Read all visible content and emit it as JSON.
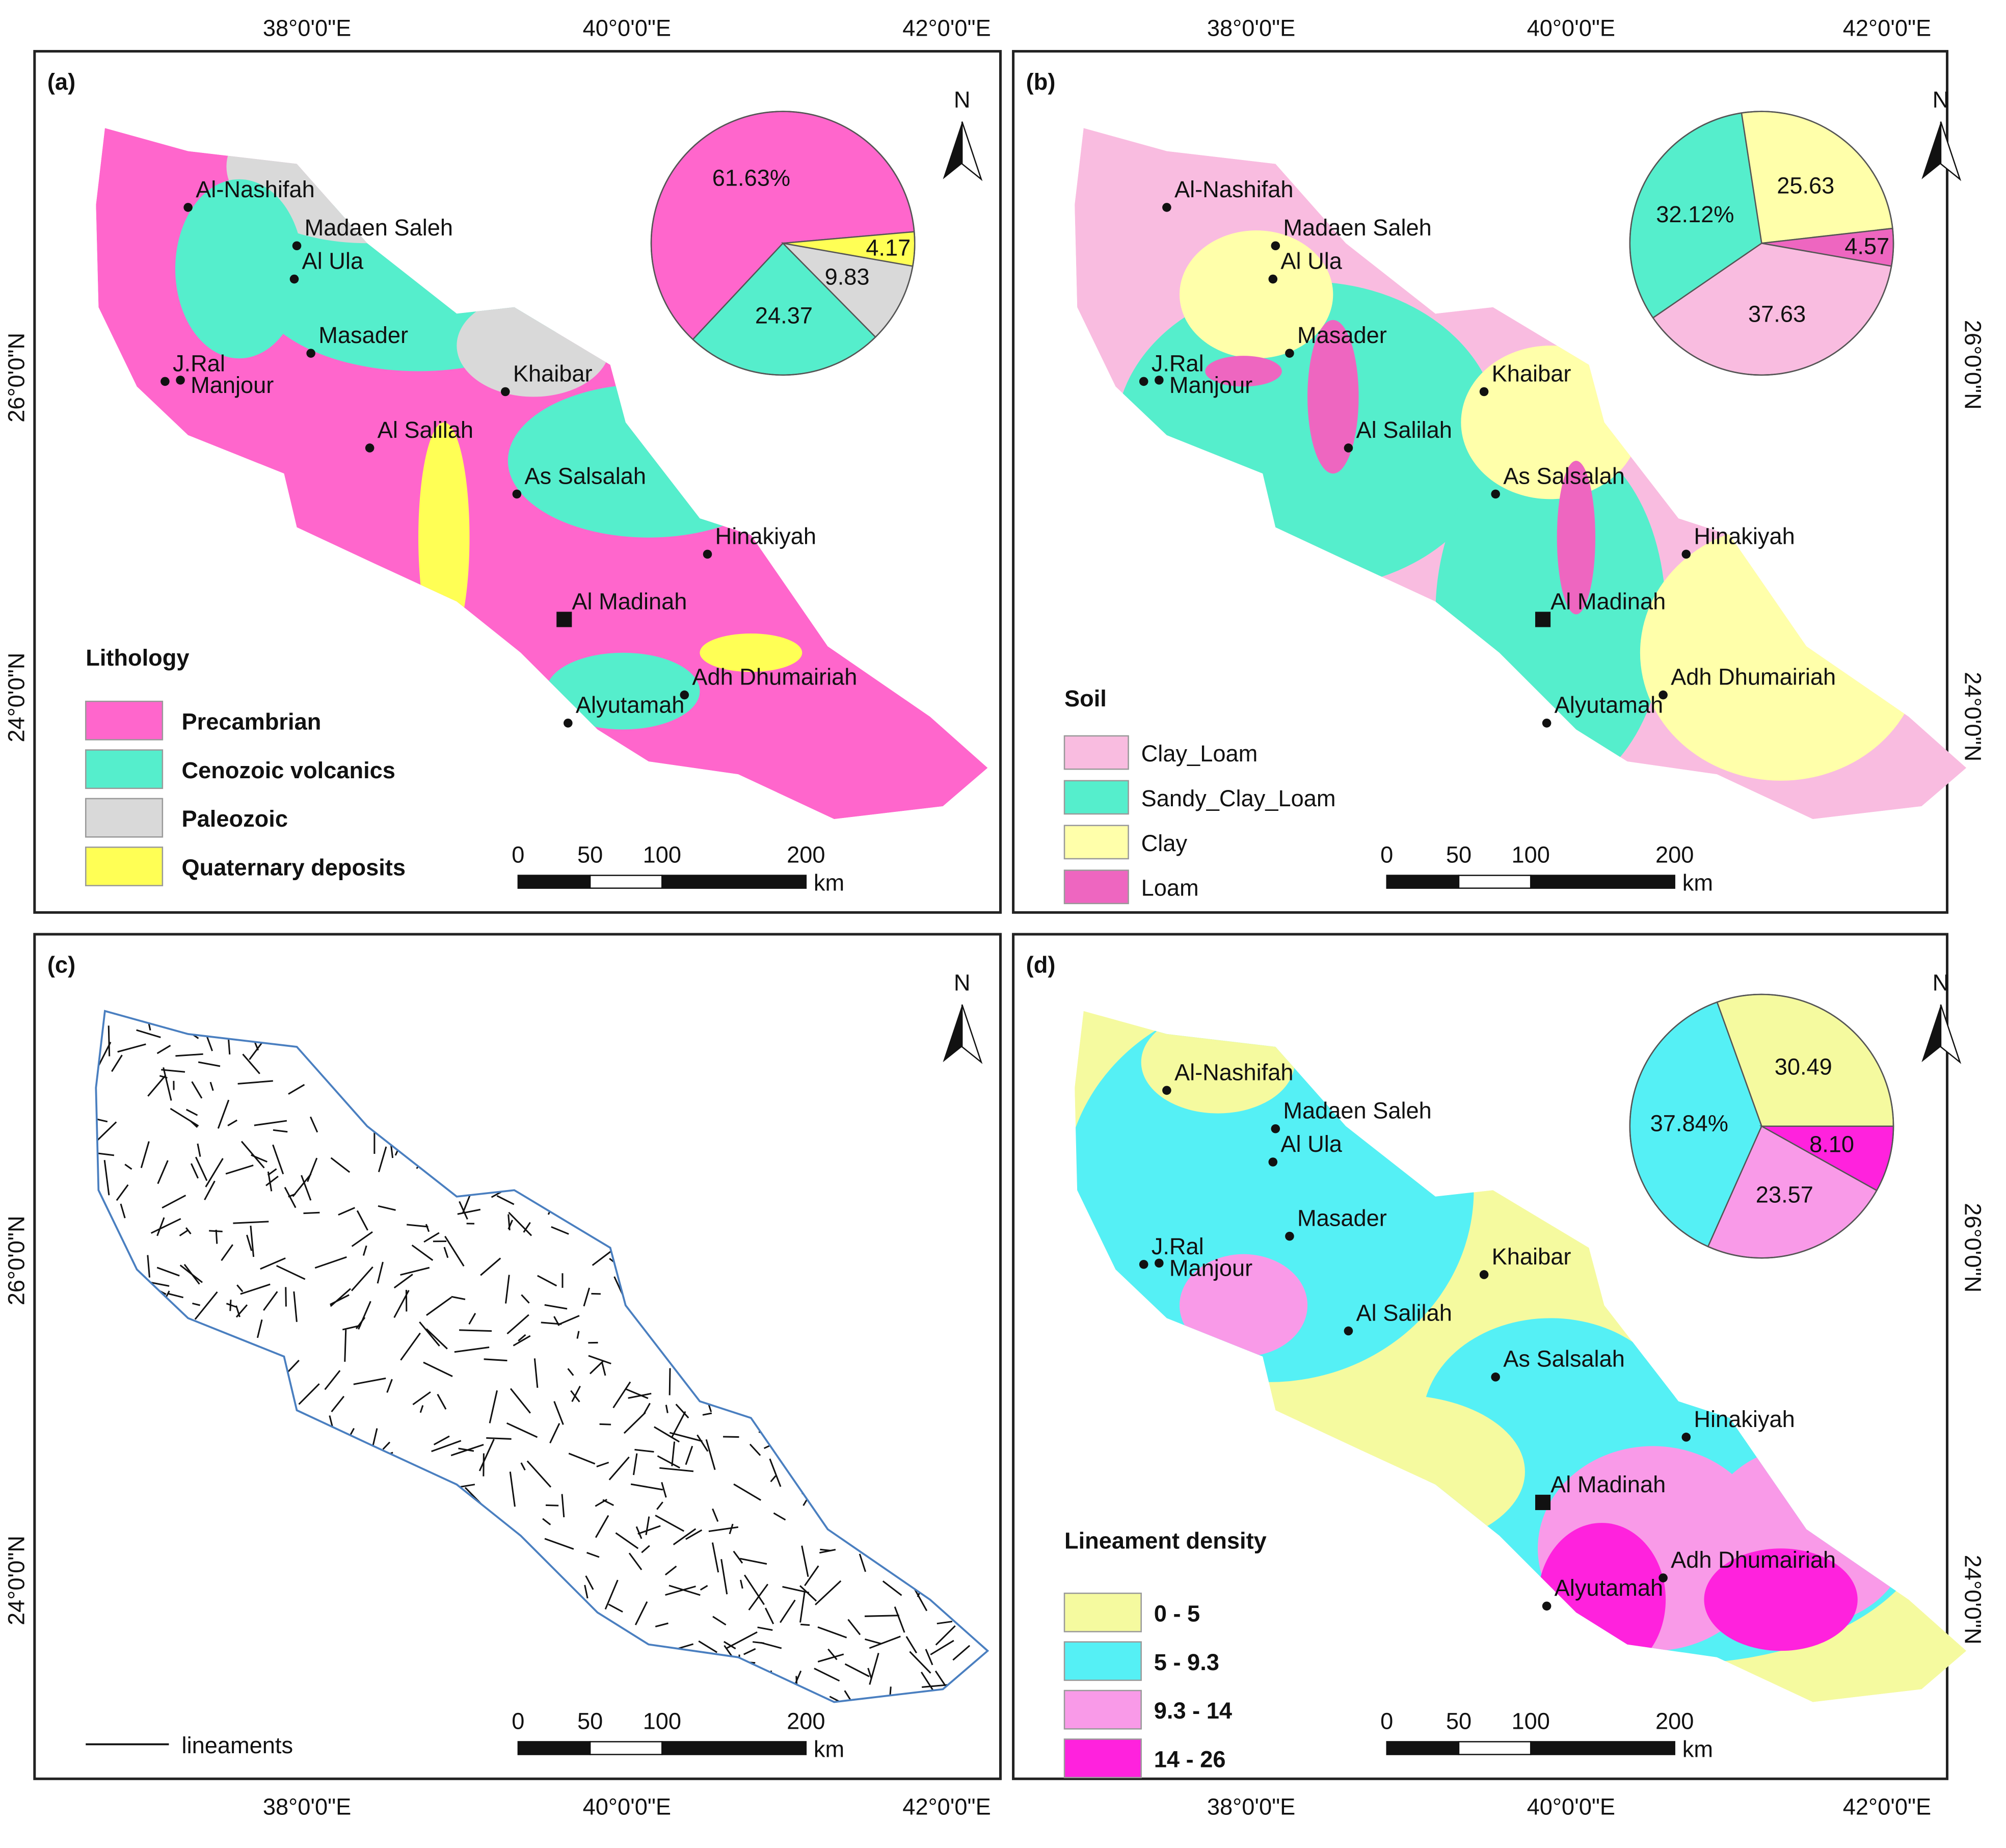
{
  "panels": [
    {
      "tag": "(a)",
      "legend_title": "Lithology",
      "legend": [
        {
          "name": "Precambrian",
          "color": "#ff66cc"
        },
        {
          "name": "Cenozoic volcanics",
          "color": "#55eecc"
        },
        {
          "name": "Paleozoic",
          "color": "#d9d9d9"
        },
        {
          "name": "Quaternary deposits",
          "color": "#ffff55"
        }
      ],
      "pie": {
        "values": [
          61.63,
          24.37,
          9.83,
          4.17
        ],
        "value_labels": [
          "61.63%",
          "24.37",
          "9.83",
          "4.17"
        ]
      }
    },
    {
      "tag": "(b)",
      "legend_title": "Soil",
      "legend": [
        {
          "name": "Clay_Loam",
          "color": "#f9bce0"
        },
        {
          "name": "Sandy_Clay_Loam",
          "color": "#55eecc"
        },
        {
          "name": "Clay",
          "color": "#ffffaa"
        },
        {
          "name": "Loam",
          "color": "#ee66c0"
        }
      ],
      "pie": {
        "values": [
          37.63,
          32.12,
          25.63,
          4.57
        ],
        "value_labels": [
          "37.63",
          "32.12%",
          "25.63",
          "4.57"
        ]
      }
    },
    {
      "tag": "(c)",
      "legend": [
        {
          "name": "lineaments",
          "color": "#111111"
        }
      ]
    },
    {
      "tag": "(d)",
      "legend_title": "Lineament density",
      "legend": [
        {
          "name": "0 - 5",
          "color": "#f5fa9f"
        },
        {
          "name": "5 - 9.3",
          "color": "#55f0f5"
        },
        {
          "name": "9.3 - 14",
          "color": "#f99ae8"
        },
        {
          "name": "14 - 26",
          "color": "#ff22dd"
        }
      ],
      "pie": {
        "values": [
          30.49,
          37.84,
          23.57,
          8.1
        ],
        "value_labels": [
          "30.49",
          "37.84%",
          "23.57",
          "8.10"
        ]
      }
    }
  ],
  "cities": [
    "Al-Nashifah",
    "Madaen Saleh",
    "Al Ula",
    "Masader",
    "J.Ral",
    "Manjour",
    "Khaibar",
    "Al Salilah",
    "As Salsalah",
    "Hinakiyah",
    "Al Madinah",
    "Adh Dhumairiah",
    "Alyutamah"
  ],
  "north": "N",
  "longitudes": [
    "38°0'0\"E",
    "40°0'0\"E",
    "42°0'0\"E"
  ],
  "latitudes": [
    "26°0'0\"N",
    "24°0'0\"N"
  ],
  "scale": {
    "ticks": [
      0,
      50,
      100,
      200
    ],
    "unit": "km"
  }
}
